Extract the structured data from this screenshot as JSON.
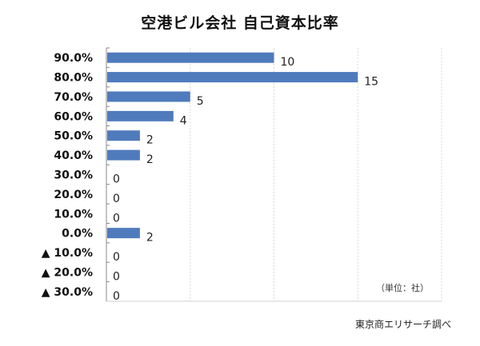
{
  "chart_data": {
    "type": "bar",
    "orientation": "horizontal",
    "title": "空港ビル会社  自己資本比率",
    "categories": [
      "90.0%",
      "80.0%",
      "70.0%",
      "60.0%",
      "50.0%",
      "40.0%",
      "30.0%",
      "20.0%",
      "10.0%",
      "0.0%",
      "▲ 10.0%",
      "▲ 20.0%",
      "▲ 30.0%"
    ],
    "values": [
      10,
      15,
      5,
      4,
      2,
      2,
      0,
      0,
      0,
      2,
      0,
      0,
      0
    ],
    "xlim": [
      0,
      20
    ],
    "grid": true,
    "bar_color": "#4f7bbd",
    "unit_note": "（単位：社）",
    "source": "東京商エリサーチ調べ"
  }
}
